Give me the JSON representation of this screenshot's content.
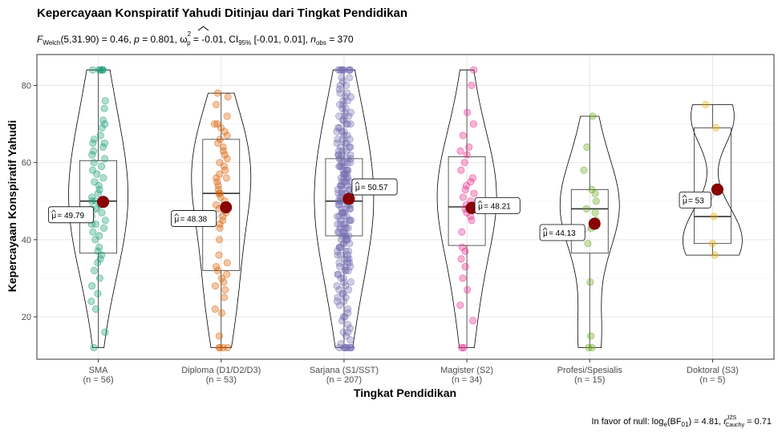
{
  "chart_data": {
    "type": "violin-box-jitter",
    "title": "Kepercayaan Konspiratif Yahudi Ditinjau dari Tingkat Pendidikan",
    "subtitle": {
      "F": "F",
      "welch": "Welch",
      "stat": "(5,31.90) = 0.46, ",
      "p": "p",
      "p_val": " = 0.801, ",
      "omega": "ω",
      "omega_sup": "2",
      "omega_sub": "p",
      "omega_val": " = -0.01, CI",
      "ci_sub": "95%",
      "ci_val": " [-0.01, 0.01], ",
      "n": "n",
      "n_sub": "obs",
      "n_val": " = 370"
    },
    "xlabel": "Tingkat Pendidikan",
    "ylabel": "Kepercayaan Konspiratif Yahudi",
    "ylim": [
      9,
      88
    ],
    "yticks": [
      20,
      40,
      60,
      80
    ],
    "grid": true,
    "caption": {
      "text1": "In favor of null: log",
      "sub1": "e",
      "text2": "(BF",
      "sub2": "01",
      "text3": ") = 4.81, ",
      "r": "r",
      "sup": "JZS",
      "sub3": "Cauchy",
      "text4": " = 0.71"
    },
    "groups": [
      {
        "name": "SMA",
        "n": "(n = 56)",
        "color": "#1b9e77",
        "mean": 49.79,
        "mean_label": "= 49.79",
        "q1": 36.5,
        "median": 50,
        "q3": 60.5,
        "wmin": 12,
        "wmax": 84,
        "points": [
          84,
          84,
          84,
          84,
          84,
          84,
          76,
          74,
          71,
          70,
          69,
          67,
          66,
          65,
          65,
          64,
          63,
          62,
          61,
          60,
          59,
          58,
          57,
          56,
          55,
          54,
          53,
          52,
          51,
          50,
          50,
          49,
          48,
          48,
          47,
          46,
          45,
          44,
          44,
          43,
          42,
          41,
          40,
          38,
          37,
          36,
          35,
          34,
          32,
          30,
          28,
          26,
          24,
          22,
          16,
          12
        ]
      },
      {
        "name": "Diploma (D1/D2/D3)",
        "n": "(n = 53)",
        "color": "#d95f02",
        "mean": 48.38,
        "mean_label": "= 48.38",
        "q1": 32,
        "median": 52,
        "q3": 66,
        "wmin": 12,
        "wmax": 78,
        "points": [
          78,
          77,
          75,
          72,
          70,
          70,
          69,
          68,
          67,
          66,
          65,
          64,
          63,
          62,
          61,
          60,
          59,
          58,
          57,
          56,
          56,
          55,
          54,
          53,
          52,
          52,
          51,
          50,
          49,
          48,
          47,
          46,
          45,
          44,
          43,
          40,
          36,
          34,
          33,
          32,
          31,
          30,
          29,
          28,
          27,
          25,
          22,
          21,
          15,
          12,
          12,
          12,
          12
        ]
      },
      {
        "name": "Sarjana (S1/SST)",
        "n": "(n = 207)",
        "color": "#7570b3",
        "mean": 50.57,
        "mean_label": "= 50.57",
        "q1": 41,
        "median": 50,
        "q3": 61,
        "wmin": 12,
        "wmax": 84,
        "points": [
          84,
          84,
          84,
          84,
          84,
          84,
          84,
          84,
          84,
          82,
          82,
          81,
          80,
          80,
          79,
          78,
          78,
          77,
          77,
          76,
          76,
          75,
          75,
          74,
          74,
          73,
          73,
          72,
          72,
          72,
          71,
          71,
          70,
          70,
          70,
          69,
          69,
          68,
          68,
          68,
          67,
          67,
          66,
          66,
          66,
          65,
          65,
          65,
          64,
          64,
          64,
          63,
          63,
          63,
          62,
          62,
          62,
          62,
          61,
          61,
          61,
          61,
          60,
          60,
          60,
          60,
          59,
          59,
          59,
          59,
          58,
          58,
          58,
          58,
          57,
          57,
          57,
          57,
          56,
          56,
          56,
          56,
          55,
          55,
          55,
          55,
          54,
          54,
          54,
          54,
          53,
          53,
          53,
          53,
          52,
          52,
          52,
          52,
          51,
          51,
          51,
          51,
          50,
          50,
          50,
          50,
          50,
          49,
          49,
          49,
          49,
          48,
          48,
          48,
          48,
          47,
          47,
          47,
          47,
          46,
          46,
          46,
          46,
          45,
          45,
          45,
          45,
          44,
          44,
          44,
          44,
          43,
          43,
          43,
          43,
          42,
          42,
          42,
          42,
          41,
          41,
          41,
          41,
          40,
          40,
          40,
          40,
          39,
          39,
          39,
          38,
          38,
          38,
          37,
          37,
          37,
          36,
          36,
          36,
          35,
          35,
          35,
          34,
          34,
          34,
          33,
          33,
          33,
          32,
          32,
          32,
          31,
          31,
          30,
          30,
          29,
          29,
          28,
          28,
          27,
          27,
          26,
          26,
          25,
          25,
          24,
          24,
          23,
          22,
          21,
          20,
          20,
          19,
          18,
          17,
          16,
          16,
          15,
          14,
          13,
          12,
          12,
          12,
          12,
          12,
          12,
          12,
          12
        ]
      },
      {
        "name": "Magister (S2)",
        "n": "(n = 34)",
        "color": "#e7298a",
        "mean": 48.21,
        "mean_label": "= 48.21",
        "q1": 38.5,
        "median": 48.5,
        "q3": 61.5,
        "wmin": 12,
        "wmax": 84,
        "points": [
          84,
          80,
          73,
          70,
          67,
          64,
          63,
          62,
          60,
          58,
          56,
          55,
          54,
          53,
          52,
          51,
          50,
          49,
          49,
          48,
          47,
          46,
          45,
          42,
          38,
          37,
          35,
          33,
          30,
          27,
          23,
          19,
          12,
          12
        ]
      },
      {
        "name": "Profesi/Spesialis",
        "n": "(n = 15)",
        "color": "#66a61e",
        "mean": 44.13,
        "mean_label": "= 44.13",
        "q1": 36.5,
        "median": 48,
        "q3": 53,
        "wmin": 12,
        "wmax": 72,
        "points": [
          72,
          64,
          58,
          53,
          52,
          50,
          48,
          47,
          45,
          43,
          39,
          29,
          15,
          12,
          12
        ]
      },
      {
        "name": "Doktoral (S3)",
        "n": "(n = 5)",
        "color": "#e6ab02",
        "mean": 53,
        "mean_label": "= 53",
        "q1": 39,
        "median": 46,
        "q3": 69,
        "wmin": 36,
        "wmax": 75,
        "points": [
          75,
          69,
          46,
          39,
          36
        ]
      }
    ]
  }
}
